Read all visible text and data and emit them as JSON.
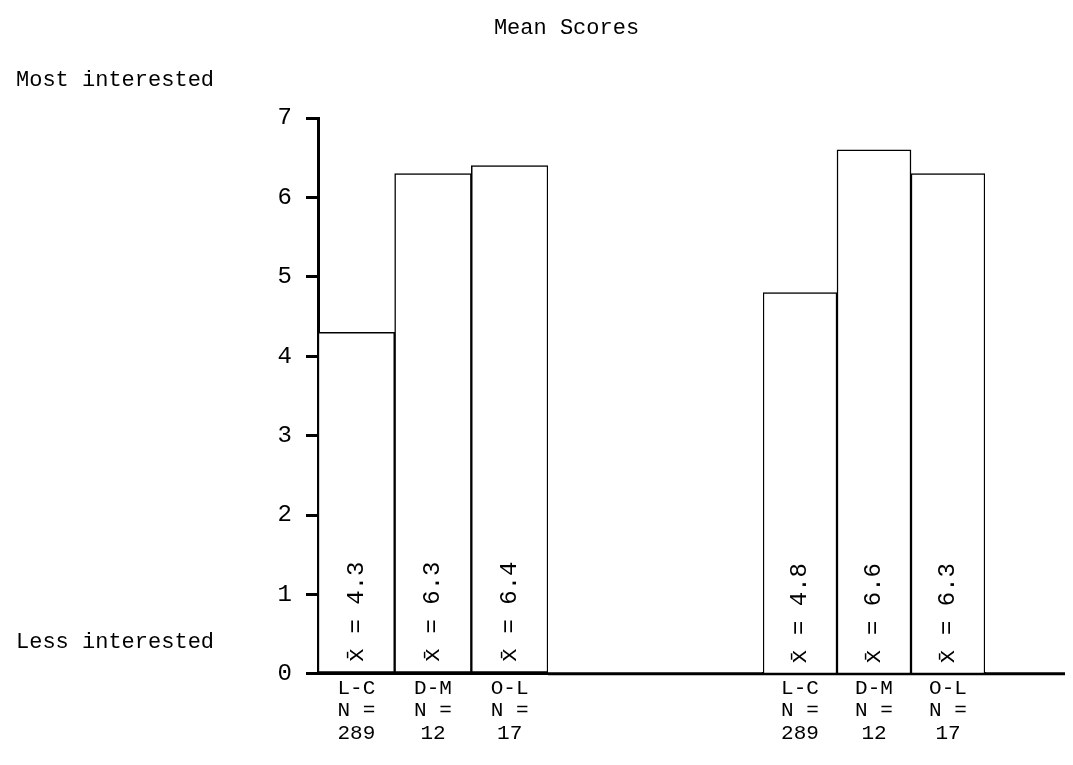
{
  "chart_data": [
    {
      "type": "bar",
      "title": "Mean Scores",
      "categories": [
        "L-C N = 289",
        "D-M N = 12",
        "O-L N = 17"
      ],
      "values": [
        4.3,
        6.3,
        6.4
      ],
      "value_labels": [
        "x̄ = 4.3",
        "x̄ = 6.3",
        "x̄ = 6.4"
      ],
      "color": "#ffffff",
      "ylim": [
        0,
        7
      ],
      "yticks": [
        0,
        1,
        2,
        3,
        4,
        5,
        6,
        7
      ],
      "annotations": [
        "Most interested",
        "Less interested"
      ]
    },
    {
      "type": "bar",
      "categories": [
        "L-C N = 289",
        "D-M N = 12",
        "O-L N = 17"
      ],
      "values": [
        4.8,
        6.6,
        6.3
      ],
      "value_labels": [
        "x̄ = 4.8",
        "x̄ = 6.6",
        "x̄ = 6.3"
      ],
      "color": "#ffffff",
      "ylim": [
        0,
        7
      ],
      "yticks": [
        0,
        1,
        2,
        3,
        4,
        5,
        6,
        7
      ],
      "tick_labels": "x"
    }
  ]
}
